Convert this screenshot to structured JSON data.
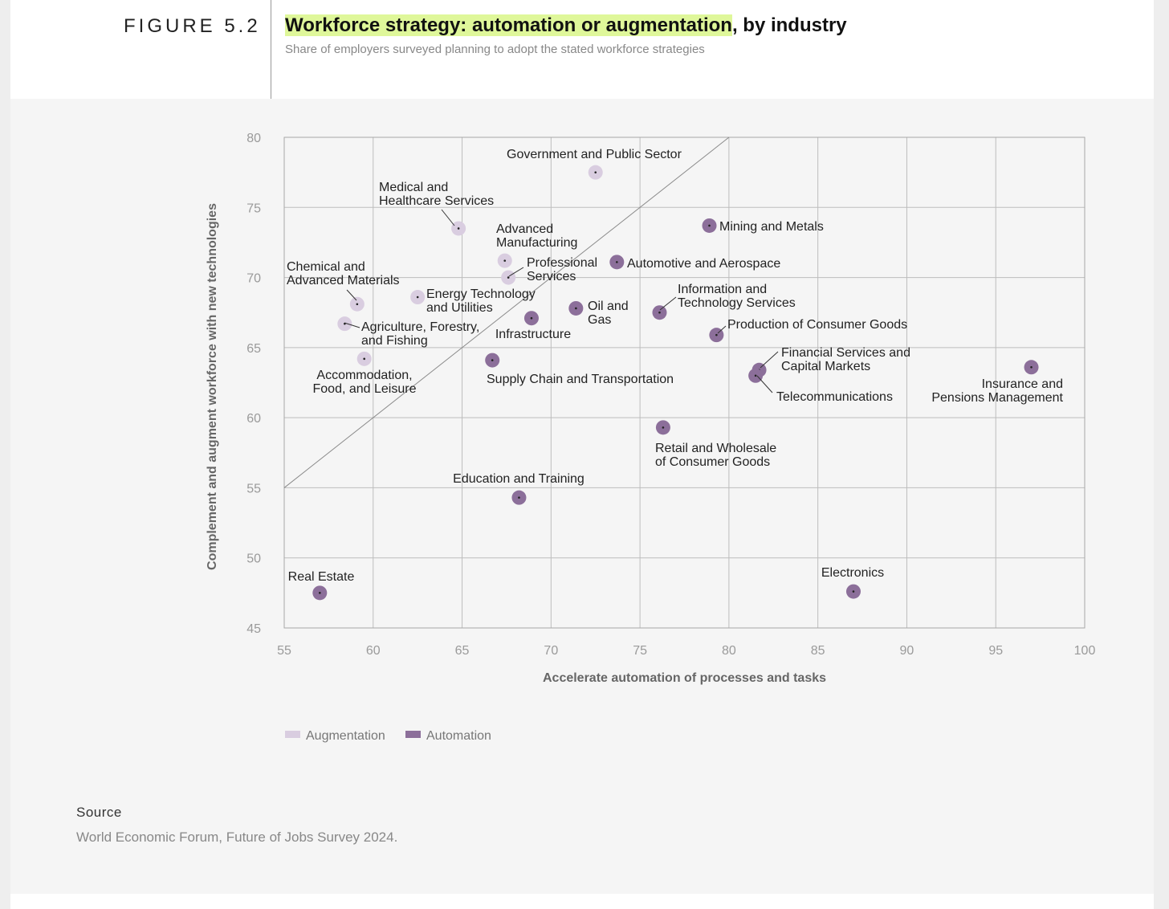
{
  "figure": {
    "label": "FIGURE 5.2",
    "title_highlight": "Workforce strategy: automation or augmentation",
    "title_rest": ", by industry",
    "subtitle": "Share of employers surveyed planning to adopt the stated workforce strategies"
  },
  "colors": {
    "augmentation": "#d9cde0",
    "automation": "#8c6f9a",
    "highlight": "#dff79a"
  },
  "chart_data": {
    "type": "scatter",
    "xlabel": "Accelerate automation of processes and tasks",
    "ylabel": "Complement and augment workforce with new technologies",
    "xlim": [
      55,
      100
    ],
    "ylim": [
      45,
      80
    ],
    "xticks": [
      55,
      60,
      65,
      70,
      75,
      80,
      85,
      90,
      95,
      100
    ],
    "yticks": [
      45,
      50,
      55,
      60,
      65,
      70,
      75,
      80
    ],
    "grid": true,
    "reference_line": "y = x",
    "legend": [
      {
        "key": "augmentation",
        "label": "Augmentation"
      },
      {
        "key": "automation",
        "label": "Automation"
      }
    ],
    "legend_position": "bottom-left",
    "points": [
      {
        "name": "Government and Public Sector",
        "x": 72.5,
        "y": 77.5,
        "group": "augmentation"
      },
      {
        "name": "Medical and Healthcare Services",
        "x": 64.8,
        "y": 73.5,
        "group": "augmentation"
      },
      {
        "name": "Advanced Manufacturing",
        "x": 67.4,
        "y": 71.2,
        "group": "augmentation"
      },
      {
        "name": "Professional Services",
        "x": 67.6,
        "y": 70.0,
        "group": "augmentation"
      },
      {
        "name": "Chemical and Advanced Materials",
        "x": 59.1,
        "y": 68.1,
        "group": "augmentation"
      },
      {
        "name": "Energy Technology and Utilities",
        "x": 62.5,
        "y": 68.6,
        "group": "augmentation"
      },
      {
        "name": "Agriculture, Forestry, and Fishing",
        "x": 58.4,
        "y": 66.7,
        "group": "augmentation"
      },
      {
        "name": "Accommodation, Food, and Leisure",
        "x": 59.5,
        "y": 64.2,
        "group": "augmentation"
      },
      {
        "name": "Mining and Metals",
        "x": 78.9,
        "y": 73.7,
        "group": "automation"
      },
      {
        "name": "Automotive and Aerospace",
        "x": 73.7,
        "y": 71.1,
        "group": "automation"
      },
      {
        "name": "Infrastructure",
        "x": 68.9,
        "y": 67.1,
        "group": "automation"
      },
      {
        "name": "Oil and Gas",
        "x": 71.4,
        "y": 67.8,
        "group": "automation"
      },
      {
        "name": "Information and Technology Services",
        "x": 76.1,
        "y": 67.5,
        "group": "automation"
      },
      {
        "name": "Production of Consumer Goods",
        "x": 79.3,
        "y": 65.9,
        "group": "automation"
      },
      {
        "name": "Supply Chain and Transportation",
        "x": 66.7,
        "y": 64.1,
        "group": "automation"
      },
      {
        "name": "Financial Services and Capital Markets",
        "x": 81.7,
        "y": 63.4,
        "group": "automation"
      },
      {
        "name": "Telecommunications",
        "x": 81.5,
        "y": 63.0,
        "group": "automation"
      },
      {
        "name": "Insurance and Pensions Management",
        "x": 97.0,
        "y": 63.6,
        "group": "automation"
      },
      {
        "name": "Retail and Wholesale of Consumer Goods",
        "x": 76.3,
        "y": 59.3,
        "group": "automation"
      },
      {
        "name": "Education and Training",
        "x": 68.2,
        "y": 54.3,
        "group": "automation"
      },
      {
        "name": "Real Estate",
        "x": 57.0,
        "y": 47.5,
        "group": "automation"
      },
      {
        "name": "Electronics",
        "x": 87.0,
        "y": 47.6,
        "group": "automation"
      }
    ]
  },
  "source": {
    "heading": "Source",
    "text": "World Economic Forum, Future of Jobs Survey 2024."
  }
}
